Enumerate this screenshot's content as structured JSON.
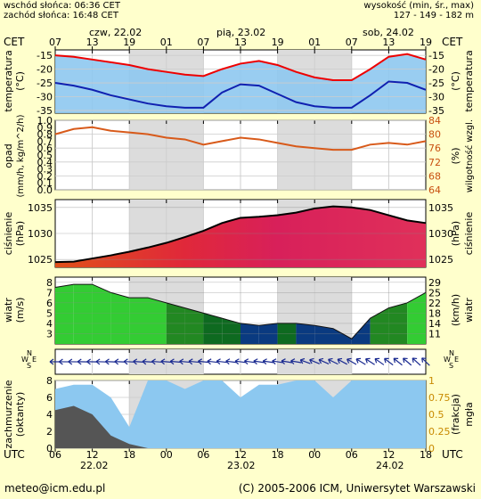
{
  "header": {
    "sunrise": "wschód słońca: 06:36 CET",
    "sunset": "zachód słońca: 16:48 CET",
    "elev_label": "wysokość (min, śr., max)",
    "elev_values": "127 - 149 - 182 m"
  },
  "timeaxis": {
    "top_zone": "CET",
    "bottom_zone": "UTC",
    "top_hours": [
      "07",
      "13",
      "19",
      "01",
      "07",
      "13",
      "19",
      "01",
      "07",
      "13",
      "19"
    ],
    "bottom_hours": [
      "06",
      "12",
      "18",
      "00",
      "06",
      "12",
      "18",
      "00",
      "06",
      "12",
      "18"
    ],
    "day_labels": [
      "czw, 22.02",
      "pią, 23.02",
      "sob, 24.02"
    ],
    "bottom_dates": [
      "22.02",
      "23.02",
      "24.02"
    ]
  },
  "footer": {
    "email": "meteo@icm.edu.pl",
    "copyright": "(C) 2005-2006 ICM, Uniwersytet Warszawski"
  },
  "chart_data": [
    {
      "type": "line",
      "name": "temperatura",
      "ylabel": "temperatura",
      "yunit": "(°C)",
      "x_hours": [
        0,
        3,
        6,
        9,
        12,
        15,
        18,
        21,
        24,
        27,
        30,
        33,
        36,
        39,
        42,
        45,
        48,
        51,
        54,
        57,
        60
      ],
      "series": [
        {
          "values": [
            -15,
            -15.5,
            -16.5,
            -17.5,
            -18.5,
            -20,
            -21,
            -22,
            -22.5,
            -20,
            -18,
            -17,
            -18.5,
            -21,
            -23,
            -24,
            -24,
            -20,
            -15.5,
            -14.5,
            -16.5
          ]
        },
        {
          "values": [
            -25,
            -26,
            -27.5,
            -29.5,
            -31,
            -32.5,
            -33.5,
            -34,
            -34,
            -28.5,
            -25.5,
            -26,
            -29,
            -32,
            -33.5,
            -34,
            -34,
            -29.5,
            -24.5,
            -25,
            -27.5
          ]
        }
      ],
      "yticks": [
        -15,
        -20,
        -25,
        -30,
        -35
      ],
      "ylim": [
        -36,
        -13
      ]
    },
    {
      "type": "line",
      "name": "opad-wilgotnosc",
      "ylabel": "opad",
      "yunit": "(mm/h, kg/m^2/h)",
      "y2label": "wilgotność wzgl.",
      "y2unit": "(%)",
      "x_hours": [
        0,
        3,
        6,
        9,
        12,
        15,
        18,
        21,
        24,
        27,
        30,
        33,
        36,
        39,
        42,
        45,
        48,
        51,
        54,
        57,
        60
      ],
      "series": [
        {
          "values": [
            80,
            81.5,
            82,
            81,
            80.5,
            80,
            79,
            78.5,
            77,
            78,
            79,
            78.5,
            77.5,
            76.5,
            76,
            75.5,
            75.5,
            77,
            77.5,
            77,
            78
          ]
        }
      ],
      "precip": [
        0,
        0,
        0,
        0,
        0,
        0,
        0,
        0,
        0,
        0,
        0,
        0,
        0,
        0,
        0,
        0,
        0,
        0,
        0,
        0,
        0
      ],
      "yticks": [
        "1.0",
        "0.9",
        "0.8",
        "0.7",
        "0.6",
        "0.5",
        "0.4",
        "0.3",
        "0.2",
        "0.1",
        "0.0"
      ],
      "y2ticks": [
        84,
        80,
        76,
        72,
        68,
        64
      ],
      "ylim": [
        0,
        1
      ],
      "y2lim": [
        64,
        84
      ]
    },
    {
      "type": "area",
      "name": "cisnienie",
      "ylabel": "ciśnienie",
      "yunit": "(hPa)",
      "x_hours": [
        0,
        3,
        6,
        9,
        12,
        15,
        18,
        21,
        24,
        27,
        30,
        33,
        36,
        39,
        42,
        45,
        48,
        51,
        54,
        57,
        60
      ],
      "series": [
        {
          "values": [
            1024.5,
            1024.6,
            1025.2,
            1025.8,
            1026.5,
            1027.3,
            1028.2,
            1029.3,
            1030.5,
            1032,
            1033,
            1033.2,
            1033.5,
            1034,
            1034.8,
            1035.2,
            1035,
            1034.5,
            1033.5,
            1032.5,
            1032
          ]
        }
      ],
      "yticks": [
        1035,
        1030,
        1025
      ],
      "ylim": [
        1023.5,
        1036.5
      ]
    },
    {
      "type": "area",
      "name": "wiatr",
      "ylabel": "wiatr",
      "yunit": "(m/s)",
      "y2label": "wiatr",
      "y2unit": "(km/h)",
      "x_hours": [
        0,
        3,
        6,
        9,
        12,
        15,
        18,
        21,
        24,
        27,
        30,
        33,
        36,
        39,
        42,
        45,
        48,
        51,
        54,
        57,
        60
      ],
      "series": [
        {
          "values": [
            7.5,
            7.8,
            7.8,
            7,
            6.5,
            6.5,
            6,
            5.5,
            5,
            4.5,
            4,
            3.8,
            4,
            4,
            3.8,
            3.5,
            2.5,
            4.5,
            5.5,
            6,
            7
          ]
        }
      ],
      "yticks": [
        8,
        7,
        6,
        5,
        4,
        3
      ],
      "y2ticks": [
        29,
        25,
        22,
        18,
        14,
        11
      ],
      "ylim": [
        2,
        8.5
      ]
    },
    {
      "type": "area",
      "name": "zachmurzenie",
      "ylabel": "zachmurzenie",
      "yunit": "(oktanty)",
      "y2label": "mgła",
      "y2unit": "(frakcja)",
      "x_hours": [
        0,
        3,
        6,
        9,
        12,
        15,
        18,
        21,
        24,
        27,
        30,
        33,
        36,
        39,
        42,
        45,
        48,
        51,
        54,
        57,
        60
      ],
      "series": [
        {
          "values": [
            4.5,
            5,
            4,
            1.5,
            0.5,
            0,
            0,
            0,
            0,
            0,
            0,
            0,
            0,
            0,
            0,
            0,
            0,
            0,
            0,
            0,
            0
          ]
        },
        {
          "values": [
            7,
            7.5,
            7.5,
            6,
            2.5,
            8,
            8,
            7,
            8,
            8,
            6,
            7.5,
            7.5,
            8,
            8,
            6,
            8,
            8,
            8,
            8,
            8
          ]
        }
      ],
      "yticks": [
        8,
        6,
        4,
        2,
        0
      ],
      "y2ticks": [
        "1",
        "0.75",
        "0.5",
        "0.25",
        "0"
      ],
      "ylim": [
        0,
        8
      ]
    }
  ]
}
